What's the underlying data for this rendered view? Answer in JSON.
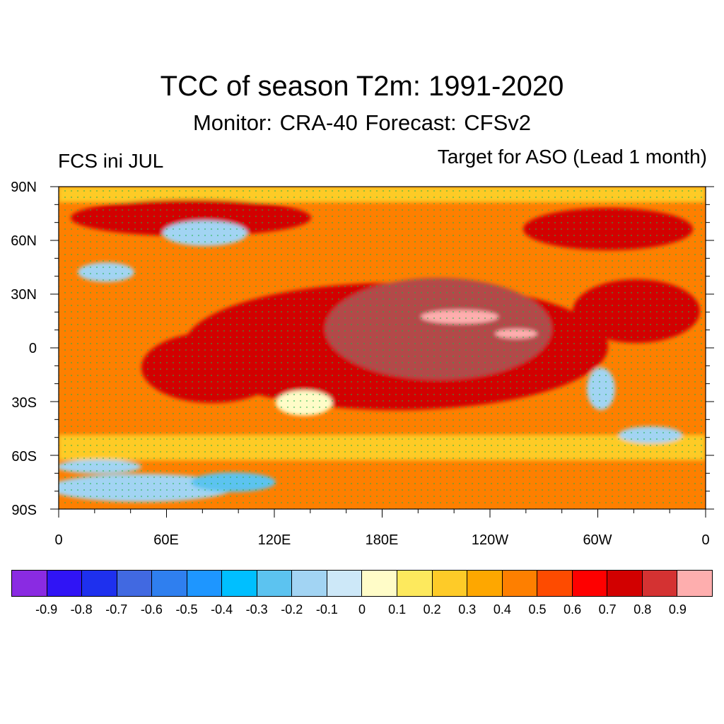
{
  "title": "TCC of season T2m: 1991-2020",
  "subtitle": "Monitor: CRA-40   Forecast: CFSv2",
  "left_label": "FCS ini JUL",
  "right_label": "Target for ASO (Lead 1 month)",
  "lat_labels": [
    "90N",
    "60N",
    "30N",
    "0",
    "30S",
    "60S",
    "90S"
  ],
  "lon_labels": [
    "0",
    "60E",
    "120E",
    "180E",
    "120W",
    "60W",
    "0"
  ],
  "colorbar": {
    "colors": [
      "#8a2be2",
      "#3014f5",
      "#1e30ee",
      "#4169e1",
      "#2f7fef",
      "#1e96ff",
      "#00bfff",
      "#5cc3f0",
      "#a2d4f3",
      "#cde8f8",
      "#fffcc8",
      "#fde95d",
      "#fecb28",
      "#fea700",
      "#fe7f00",
      "#fe4b00",
      "#fe0000",
      "#d20000",
      "#d43232",
      "#feaeae"
    ],
    "labels": [
      "-0.9",
      "-0.8",
      "-0.7",
      "-0.6",
      "-0.5",
      "-0.4",
      "-0.3",
      "-0.2",
      "-0.1",
      "0",
      "0.1",
      "0.2",
      "0.3",
      "0.4",
      "0.5",
      "0.6",
      "0.7",
      "0.8",
      "0.9"
    ]
  },
  "map_colors": {
    "ocean_dark": "#b34a4a",
    "strong": "#d20000",
    "medium": "#fe7f00",
    "weak": "#fecb28",
    "pale": "#fffcc8",
    "blue": "#a2d4f3",
    "blue_deep": "#5cc3f0",
    "pink": "#feaeae",
    "stipple": "#22b14c"
  }
}
